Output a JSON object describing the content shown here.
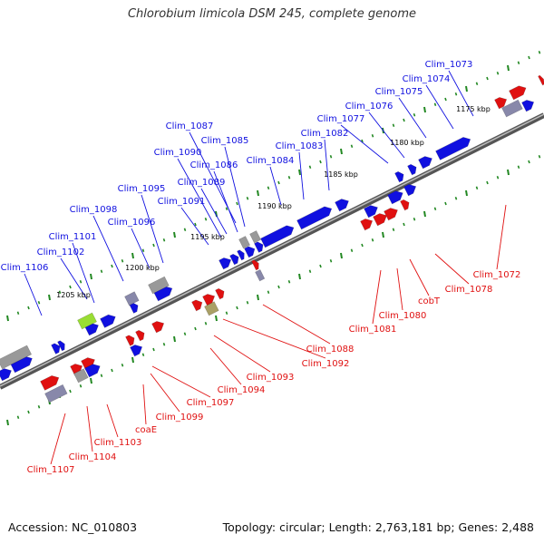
{
  "title": "Chlorobium limicola DSM 245, complete genome",
  "footer": {
    "accession": "Accession: NC_010803",
    "topology": "Topology: circular; Length: 2,763,181 bp; Genes: 2,488"
  },
  "colors": {
    "forward_strand": "#1010e0",
    "reverse_strand": "#e01010",
    "pseudo_gene": "#8888aa",
    "other_gene": "#999999",
    "highlight_gene": "#99dd33",
    "olive_gene": "#aaa066",
    "tick_marks": "#228822",
    "backbone": "#555555"
  },
  "kbp_labels": [
    "1175 kbp",
    "1180 kbp",
    "1185 kbp",
    "1190 kbp",
    "1195 kbp",
    "1200 kbp",
    "1205 kbp"
  ],
  "top_labels": [
    "Clim_1073",
    "Clim_1074",
    "Clim_1075",
    "Clim_1076",
    "Clim_1077",
    "Clim_1082",
    "Clim_1083",
    "Clim_1084",
    "Clim_1085",
    "Clim_1086",
    "Clim_1087",
    "Clim_1089",
    "Clim_1090",
    "Clim_1091",
    "Clim_1095",
    "Clim_1096",
    "Clim_1098",
    "Clim_1101",
    "Clim_1102",
    "Clim_1106"
  ],
  "bottom_labels": [
    "Clim_1072",
    "Clim_1078",
    "cobT",
    "Clim_1080",
    "Clim_1081",
    "Clim_1088",
    "Clim_1092",
    "Clim_1093",
    "Clim_1094",
    "Clim_1097",
    "Clim_1099",
    "coaE",
    "Clim_1103",
    "Clim_1104",
    "Clim_1107"
  ]
}
